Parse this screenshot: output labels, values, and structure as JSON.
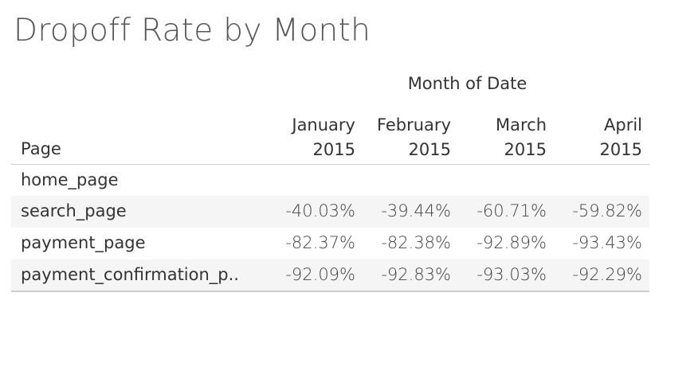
{
  "title": "Dropoff Rate by Month",
  "chart_data": {
    "type": "table",
    "title": "Dropoff Rate by Month",
    "column_group_label": "Month of Date",
    "row_header_label": "Page",
    "columns": [
      {
        "line1": "January",
        "line2": "2015"
      },
      {
        "line1": "February",
        "line2": "2015"
      },
      {
        "line1": "March",
        "line2": "2015"
      },
      {
        "line1": "April",
        "line2": "2015"
      }
    ],
    "rows": [
      {
        "label": "home_page",
        "values": [
          "",
          "",
          "",
          ""
        ]
      },
      {
        "label": "search_page",
        "values": [
          "-40.03%",
          "-39.44%",
          "-60.71%",
          "-59.82%"
        ]
      },
      {
        "label": "payment_page",
        "values": [
          "-82.37%",
          "-82.38%",
          "-92.89%",
          "-93.43%"
        ]
      },
      {
        "label": "payment_confirmation_p..",
        "values": [
          "-92.09%",
          "-92.83%",
          "-93.03%",
          "-92.29%"
        ]
      }
    ]
  }
}
